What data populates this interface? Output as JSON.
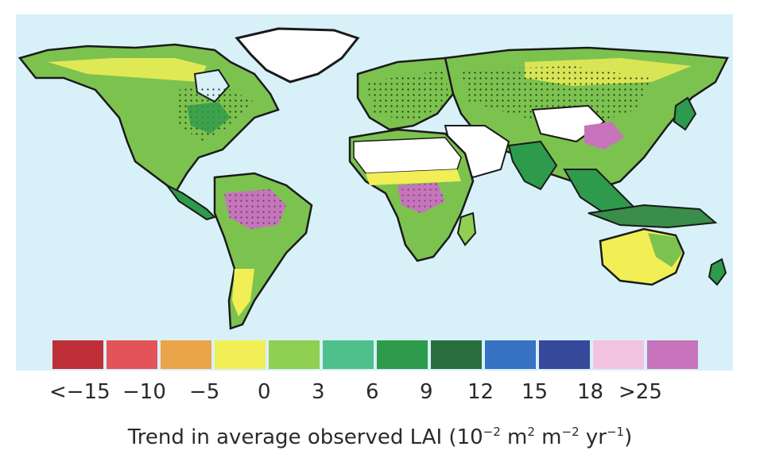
{
  "legend": {
    "colors": [
      "#be2f37",
      "#e2535a",
      "#eaa44a",
      "#f1ee56",
      "#8fcf52",
      "#4fc08b",
      "#2e9a4c",
      "#2a6e3d",
      "#3872c4",
      "#35489a",
      "#f2c3e1",
      "#c774bd"
    ],
    "labels": [
      "<−15",
      "−10",
      "−5",
      "0",
      "3",
      "6",
      "9",
      "12",
      "15",
      "18",
      ">25"
    ]
  },
  "caption": {
    "prefix": "Trend in average observed LAI (10",
    "exp1": "−2",
    "m1": " m",
    "exp2": "2",
    "m2": " m",
    "exp3": "−2",
    "yr": " yr",
    "exp4": "−1",
    "suffix": ")"
  },
  "map": {
    "ocean_color": "#d8f1f9",
    "land_color": "#7cc24f",
    "no_data_color": "#ffffff",
    "border_color": "#1a1a1a"
  }
}
